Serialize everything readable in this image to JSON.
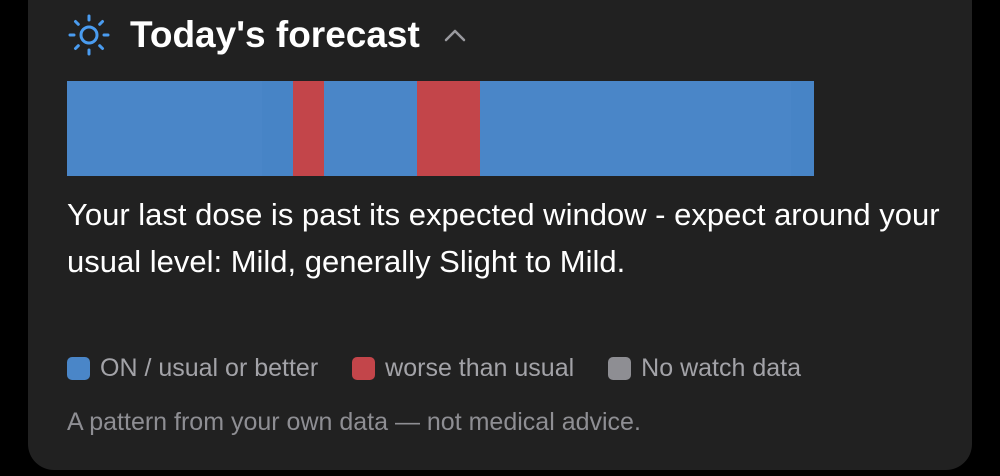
{
  "header": {
    "title": "Today's forecast"
  },
  "forecast_bar": {
    "segments": [
      {
        "state": "ON / usual or better",
        "color": "#4a86c8",
        "length": 195
      },
      {
        "state": "ON / usual or better",
        "color": "#4784c6",
        "length": 31
      },
      {
        "state": "worse than usual",
        "color": "#c3454a",
        "length": 31
      },
      {
        "state": "ON / usual or better",
        "color": "#4a86c8",
        "length": 93
      },
      {
        "state": "worse than usual",
        "color": "#c3454a",
        "length": 63
      },
      {
        "state": "ON / usual or better",
        "color": "#4a86c8",
        "length": 311
      },
      {
        "state": "ON / usual or better",
        "color": "#4784c6",
        "length": 23
      }
    ]
  },
  "message": "Your last dose is past its expected window - expect around your usual level: Mild, generally Slight to Mild.",
  "legend": [
    {
      "label": "ON / usual or better",
      "color": "#4a86c8"
    },
    {
      "label": "worse than usual",
      "color": "#c3454a"
    },
    {
      "label": "No watch data",
      "color": "#8e8e93"
    }
  ],
  "footer": "A pattern from your own data — not medical advice."
}
